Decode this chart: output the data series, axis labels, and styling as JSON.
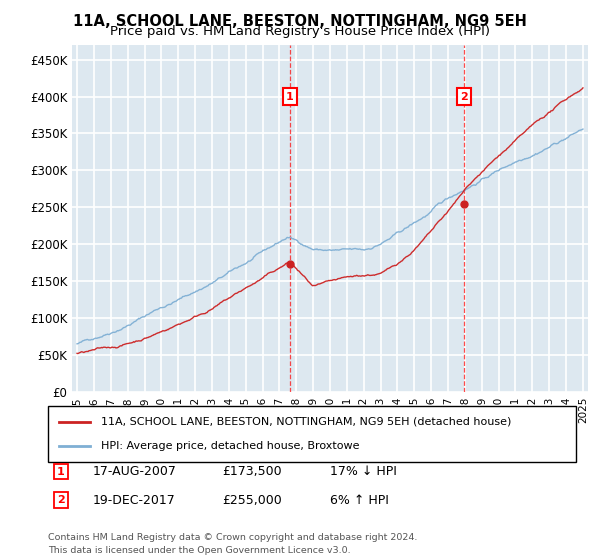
{
  "title": "11A, SCHOOL LANE, BEESTON, NOTTINGHAM, NG9 5EH",
  "subtitle": "Price paid vs. HM Land Registry's House Price Index (HPI)",
  "ylim": [
    0,
    470000
  ],
  "yticks": [
    0,
    50000,
    100000,
    150000,
    200000,
    250000,
    300000,
    350000,
    400000,
    450000
  ],
  "xlim_start": 1994.7,
  "xlim_end": 2025.3,
  "background_color": "#dde8f0",
  "grid_color": "#ffffff",
  "red_line_color": "#cc2222",
  "blue_line_color": "#7fafd4",
  "marker1_date": 2007.625,
  "marker1_price": 173500,
  "marker1_label": "17-AUG-2007",
  "marker1_amount": "£173,500",
  "marker1_hpi": "17% ↓ HPI",
  "marker2_date": 2017.96,
  "marker2_price": 255000,
  "marker2_label": "19-DEC-2017",
  "marker2_amount": "£255,000",
  "marker2_hpi": "6% ↑ HPI",
  "legend_line1": "11A, SCHOOL LANE, BEESTON, NOTTINGHAM, NG9 5EH (detached house)",
  "legend_line2": "HPI: Average price, detached house, Broxtowe",
  "footnote1": "Contains HM Land Registry data © Crown copyright and database right 2024.",
  "footnote2": "This data is licensed under the Open Government Licence v3.0.",
  "title_fontsize": 10.5,
  "subtitle_fontsize": 9.5
}
